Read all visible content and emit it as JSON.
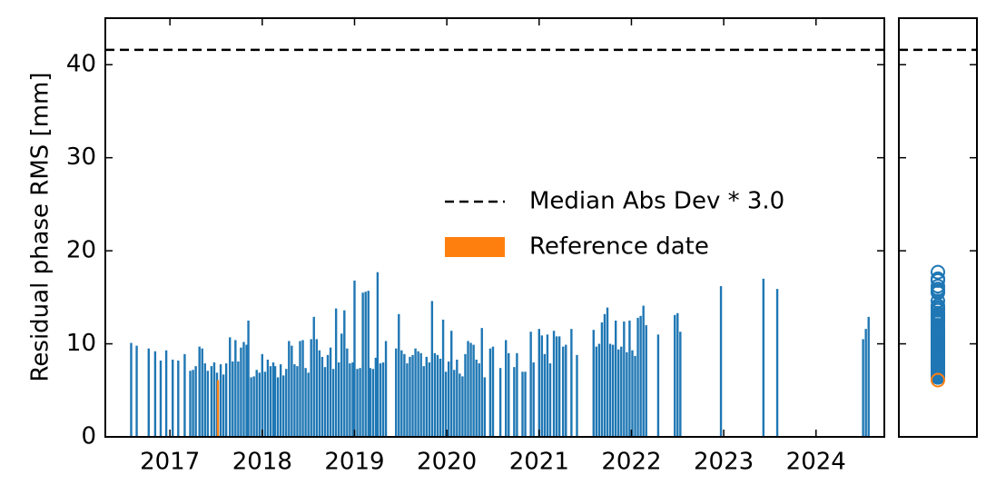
{
  "chart_data": {
    "type": "bar",
    "ylabel": "Residual phase RMS [mm]",
    "xlim": [
      2016.3,
      2024.74
    ],
    "xticks": [
      2017,
      2018,
      2019,
      2020,
      2021,
      2022,
      2023,
      2024
    ],
    "ylim": [
      0,
      45
    ],
    "yticks": [
      0,
      10,
      20,
      30,
      40
    ],
    "color": "#1f77b4",
    "threshold": {
      "label": "Median Abs Dev * 3.0",
      "value": 41.6,
      "color": "#000000"
    },
    "reference": {
      "label": "Reference date",
      "x": 2017.52,
      "value": 6.1,
      "color": "#ff7f0e"
    },
    "x": [
      2016.58,
      2016.64,
      2016.77,
      2016.84,
      2016.9,
      2016.96,
      2017.03,
      2017.09,
      2017.16,
      2017.22,
      2017.25,
      2017.28,
      2017.32,
      2017.35,
      2017.38,
      2017.41,
      2017.45,
      2017.48,
      2017.51,
      2017.55,
      2017.58,
      2017.61,
      2017.65,
      2017.68,
      2017.71,
      2017.74,
      2017.77,
      2017.8,
      2017.83,
      2017.85,
      2017.88,
      2017.91,
      2017.94,
      2017.97,
      2018.0,
      2018.03,
      2018.06,
      2018.09,
      2018.12,
      2018.14,
      2018.17,
      2018.2,
      2018.23,
      2018.26,
      2018.29,
      2018.32,
      2018.35,
      2018.38,
      2018.41,
      2018.44,
      2018.47,
      2018.5,
      2018.53,
      2018.56,
      2018.59,
      2018.62,
      2018.65,
      2018.68,
      2018.71,
      2018.74,
      2018.77,
      2018.8,
      2018.83,
      2018.86,
      2018.89,
      2018.92,
      2018.95,
      2018.98,
      2019.0,
      2019.03,
      2019.06,
      2019.09,
      2019.12,
      2019.15,
      2019.17,
      2019.2,
      2019.23,
      2019.25,
      2019.28,
      2019.31,
      2019.34,
      2019.45,
      2019.48,
      2019.51,
      2019.54,
      2019.57,
      2019.6,
      2019.63,
      2019.66,
      2019.69,
      2019.72,
      2019.75,
      2019.78,
      2019.81,
      2019.84,
      2019.87,
      2019.9,
      2019.93,
      2019.96,
      2019.99,
      2020.02,
      2020.05,
      2020.08,
      2020.11,
      2020.14,
      2020.17,
      2020.2,
      2020.23,
      2020.26,
      2020.29,
      2020.32,
      2020.35,
      2020.38,
      2020.41,
      2020.47,
      2020.5,
      2020.58,
      2020.64,
      2020.67,
      2020.73,
      2020.76,
      2020.82,
      2020.85,
      2020.91,
      2020.94,
      2021.0,
      2021.03,
      2021.06,
      2021.09,
      2021.12,
      2021.16,
      2021.19,
      2021.22,
      2021.26,
      2021.29,
      2021.35,
      2021.41,
      2021.59,
      2021.62,
      2021.65,
      2021.68,
      2021.71,
      2021.74,
      2021.77,
      2021.8,
      2021.83,
      2021.86,
      2021.89,
      2021.92,
      2021.95,
      2021.98,
      2022.01,
      2022.04,
      2022.07,
      2022.1,
      2022.13,
      2022.16,
      2022.29,
      2022.47,
      2022.5,
      2022.53,
      2022.97,
      2023.43,
      2023.58,
      2024.51,
      2024.54,
      2024.57
    ],
    "values": [
      10.1,
      9.8,
      9.5,
      9.2,
      8.2,
      9.3,
      8.3,
      8.2,
      8.9,
      7.1,
      7.2,
      7.6,
      9.7,
      9.5,
      7.9,
      7.1,
      7.6,
      8.0,
      6.9,
      7.8,
      6.7,
      7.9,
      10.7,
      8.1,
      10.4,
      8.1,
      9.6,
      10.2,
      9.9,
      12.5,
      6.4,
      6.5,
      7.2,
      6.9,
      8.9,
      7.0,
      8.3,
      7.6,
      8.0,
      7.6,
      6.4,
      7.8,
      6.6,
      7.3,
      10.3,
      9.8,
      7.8,
      7.6,
      10.3,
      10.4,
      7.4,
      6.9,
      10.5,
      12.9,
      10.5,
      9.3,
      8.6,
      7.5,
      8.8,
      9.6,
      7.3,
      13.8,
      8.0,
      11.1,
      13.6,
      9.5,
      7.9,
      8.0,
      16.8,
      7.3,
      7.4,
      15.5,
      15.6,
      15.7,
      7.4,
      7.3,
      8.5,
      17.7,
      7.9,
      8.0,
      10.3,
      9.5,
      13.2,
      9.3,
      8.9,
      7.9,
      8.6,
      8.8,
      9.5,
      9.2,
      9.0,
      7.6,
      8.6,
      8.0,
      14.6,
      9.0,
      8.8,
      8.4,
      12.6,
      7.0,
      8.1,
      11.4,
      7.2,
      8.3,
      6.8,
      6.5,
      8.9,
      10.3,
      10.1,
      9.9,
      8.3,
      7.9,
      11.7,
      6.4,
      9.5,
      9.7,
      7.4,
      10.4,
      9.0,
      7.5,
      9.0,
      7.0,
      7.0,
      11.3,
      8.0,
      11.6,
      10.9,
      8.9,
      11.0,
      7.9,
      11.4,
      10.8,
      10.8,
      9.7,
      9.9,
      11.6,
      8.8,
      11.5,
      9.7,
      10.0,
      12.3,
      13.2,
      13.9,
      10.0,
      9.9,
      12.5,
      9.4,
      9.7,
      12.4,
      9.1,
      12.5,
      9.3,
      8.7,
      12.8,
      13.0,
      14.1,
      12.0,
      11.0,
      13.1,
      13.3,
      11.3,
      16.2,
      17.0,
      15.9,
      10.5,
      11.6,
      12.9
    ]
  }
}
